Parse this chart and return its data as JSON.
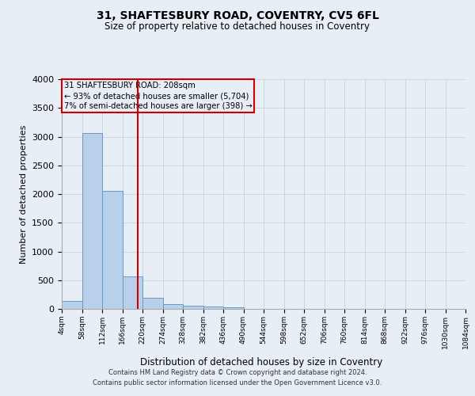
{
  "title": "31, SHAFTESBURY ROAD, COVENTRY, CV5 6FL",
  "subtitle": "Size of property relative to detached houses in Coventry",
  "xlabel": "Distribution of detached houses by size in Coventry",
  "ylabel": "Number of detached properties",
  "bar_edges": [
    4,
    58,
    112,
    166,
    220,
    274,
    328,
    382,
    436,
    490,
    544,
    598,
    652,
    706,
    760,
    814,
    868,
    922,
    976,
    1030,
    1084
  ],
  "bar_heights": [
    140,
    3060,
    2060,
    560,
    200,
    85,
    58,
    42,
    30,
    0,
    0,
    0,
    0,
    0,
    0,
    0,
    0,
    0,
    0,
    0
  ],
  "bar_color": "#b8d0ea",
  "bar_edge_color": "#6699cc",
  "property_size": 208,
  "vline_color": "#cc0000",
  "annotation_text": "31 SHAFTESBURY ROAD: 208sqm\n← 93% of detached houses are smaller (5,704)\n7% of semi-detached houses are larger (398) →",
  "annotation_box_color": "#cc0000",
  "grid_color": "#ccd5e0",
  "background_color": "#e8eef5",
  "ylim": [
    0,
    4000
  ],
  "yticks": [
    0,
    500,
    1000,
    1500,
    2000,
    2500,
    3000,
    3500,
    4000
  ],
  "footer_line1": "Contains HM Land Registry data © Crown copyright and database right 2024.",
  "footer_line2": "Contains public sector information licensed under the Open Government Licence v3.0."
}
